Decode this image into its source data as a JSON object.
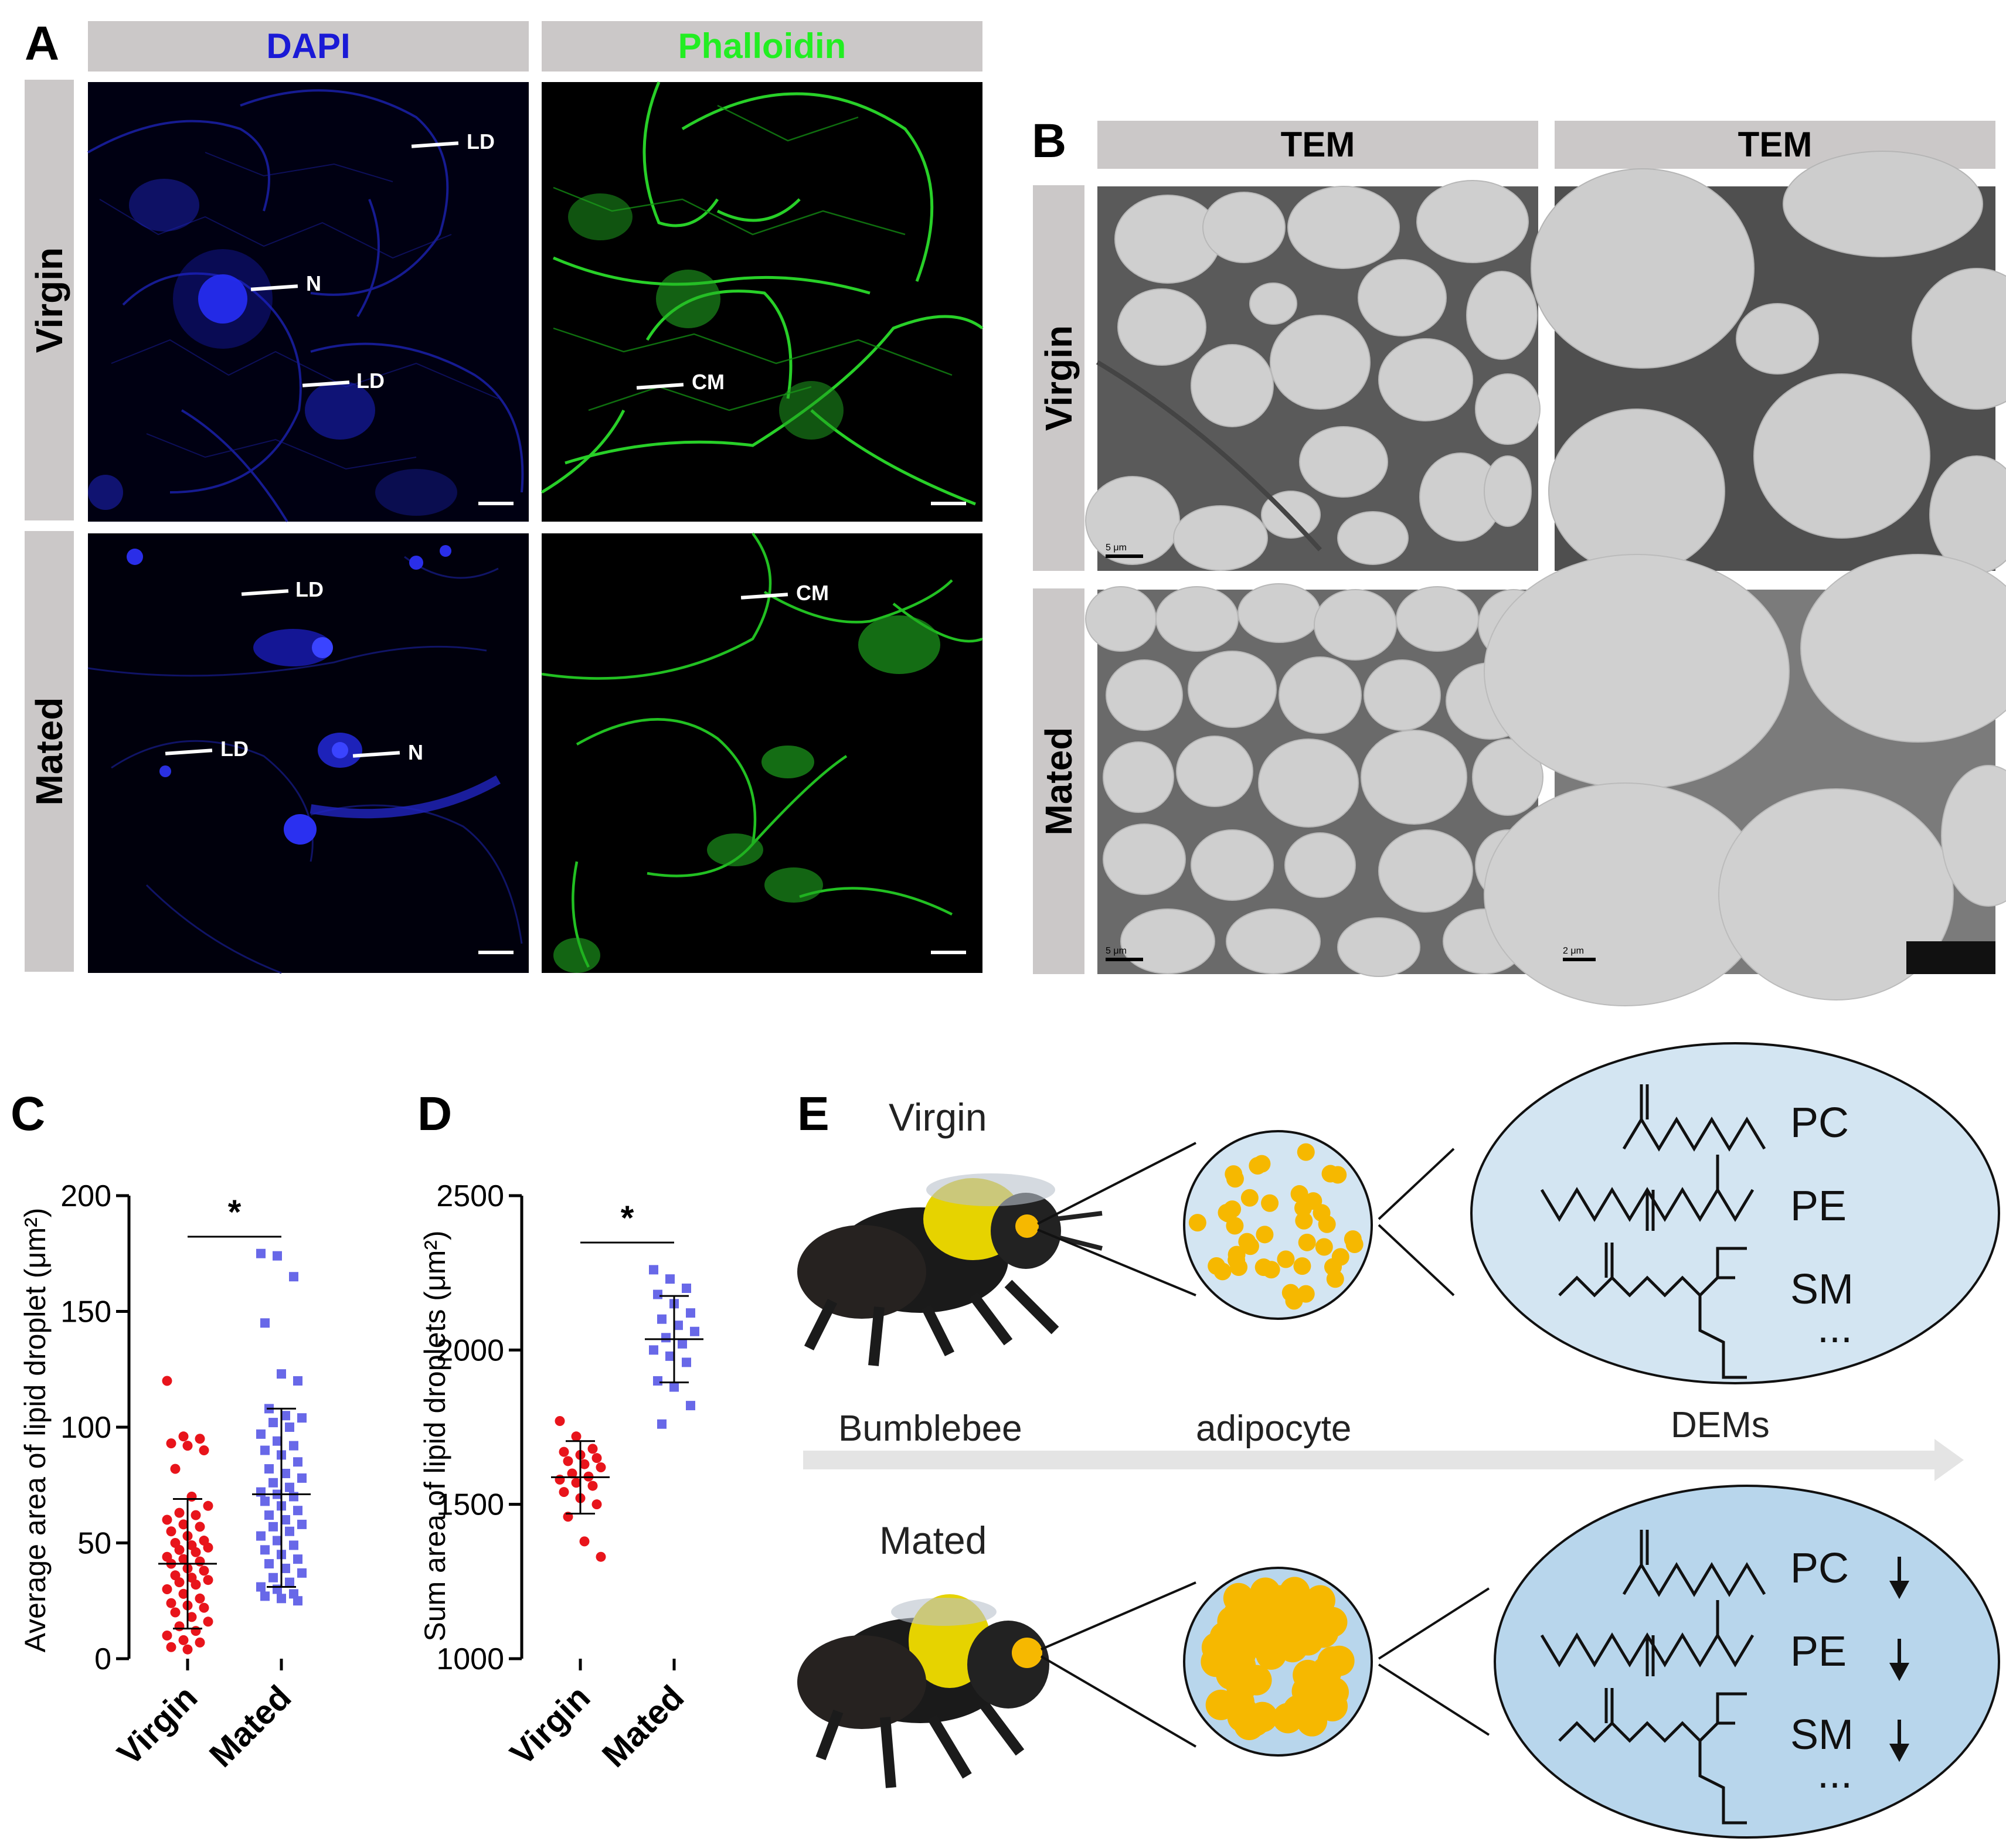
{
  "panel_a": {
    "label": "A",
    "col_headers": [
      "DAPI",
      "Phalloidin"
    ],
    "header_colors": [
      "#1a1ad6",
      "#22ee22"
    ],
    "row_labels": [
      "Virgin",
      "Mated"
    ],
    "annotations": {
      "dapi_virgin": [
        "LD",
        "N",
        "LD"
      ],
      "phal_virgin": [
        "CM"
      ],
      "dapi_mated": [
        "LD",
        "LD",
        "N"
      ],
      "phal_mated": [
        "CM"
      ]
    }
  },
  "panel_b": {
    "label": "B",
    "col_headers": [
      "TEM",
      "TEM"
    ],
    "row_labels": [
      "Virgin",
      "Mated"
    ],
    "scale_labels": [
      "5 μm",
      "5 μm",
      "2 μm"
    ]
  },
  "panel_c": {
    "label": "C",
    "ylabel": "Average area of lipid droplet (μm²)",
    "significance": "*"
  },
  "panel_d": {
    "label": "D",
    "ylabel": "Sum area of lipid droplets (μm²)",
    "significance": "*"
  },
  "panel_e": {
    "label": "E",
    "top_label": "Virgin",
    "bottom_label": "Mated",
    "flow_labels": [
      "Bumblebee",
      "adipocyte",
      "DEMs"
    ],
    "metabolites": [
      "PC",
      "PE",
      "SM",
      "..."
    ],
    "droplet_color": "#f6b800",
    "cell_bg_top": "#d3e5f2",
    "cell_bg_bottom": "#b8d6ec"
  },
  "chart_data": [
    {
      "type": "scatter",
      "panel": "C",
      "categories": [
        "Virgin",
        "Mated"
      ],
      "ylabel": "Average area of lipid droplet (μm²)",
      "ylim": [
        0,
        200
      ],
      "yticks": [
        0,
        50,
        100,
        150,
        200
      ],
      "series": [
        {
          "name": "Virgin",
          "color": "#e8141b",
          "marker": "circle",
          "mean": 41,
          "sd_upper": 69,
          "sd_lower": 13,
          "values": [
            120,
            96,
            95,
            93,
            92,
            90,
            82,
            70,
            66,
            63,
            62,
            60,
            58,
            57,
            55,
            53,
            51,
            50,
            49,
            48,
            47,
            46,
            44,
            43,
            42,
            41,
            39,
            38,
            36,
            35,
            34,
            33,
            32,
            30,
            28,
            26,
            24,
            23,
            22,
            20,
            18,
            16,
            14,
            12,
            10,
            8,
            7,
            5,
            4
          ]
        },
        {
          "name": "Mated",
          "color": "#6868e8",
          "marker": "square",
          "mean": 71,
          "sd_upper": 108,
          "sd_lower": 31,
          "values": [
            175,
            174,
            165,
            145,
            123,
            120,
            108,
            105,
            104,
            102,
            100,
            97,
            94,
            92,
            90,
            88,
            85,
            82,
            80,
            78,
            76,
            74,
            72,
            71,
            70,
            68,
            66,
            64,
            62,
            60,
            58,
            57,
            55,
            53,
            51,
            49,
            47,
            45,
            43,
            41,
            39,
            37,
            35,
            33,
            31,
            30,
            28,
            27,
            26,
            25
          ]
        }
      ]
    },
    {
      "type": "scatter",
      "panel": "D",
      "categories": [
        "Virgin",
        "Mated"
      ],
      "ylabel": "Sum area of lipid droplets (μm²)",
      "ylim": [
        1000,
        2500
      ],
      "yticks": [
        1000,
        1500,
        2000,
        2500
      ],
      "series": [
        {
          "name": "Virgin",
          "color": "#e8141b",
          "marker": "circle",
          "mean": 1588,
          "sd_upper": 1705,
          "sd_lower": 1470,
          "values": [
            1770,
            1720,
            1680,
            1670,
            1660,
            1650,
            1640,
            1630,
            1620,
            1600,
            1590,
            1580,
            1570,
            1560,
            1540,
            1520,
            1500,
            1460,
            1380,
            1330
          ]
        },
        {
          "name": "Mated",
          "color": "#6868e8",
          "marker": "square",
          "mean": 2035,
          "sd_upper": 2175,
          "sd_lower": 1895,
          "values": [
            2260,
            2230,
            2200,
            2180,
            2150,
            2120,
            2100,
            2080,
            2060,
            2040,
            2020,
            2000,
            1980,
            1960,
            1900,
            1880,
            1820,
            1760
          ]
        }
      ]
    }
  ]
}
